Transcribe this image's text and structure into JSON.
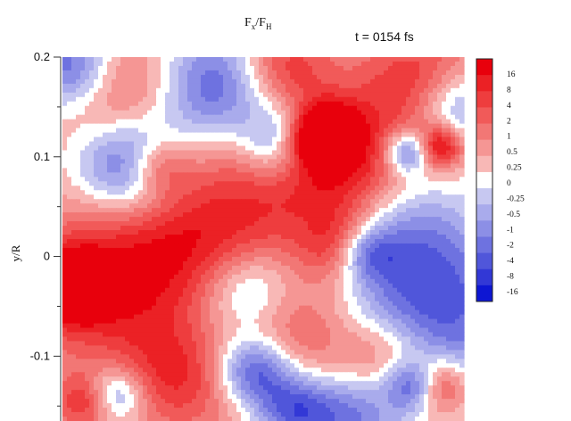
{
  "chart_data": {
    "type": "heatmap",
    "title_main": "F",
    "title_sub1": "x",
    "title_sep": "/F",
    "title_sub2": "H",
    "annotation": "t = 0154 fs",
    "ylabel": "y/R",
    "xlabel": "",
    "y_ticks": [
      "0.2",
      "0.1",
      "0",
      "-0.1"
    ],
    "y_tick_values": [
      0.2,
      0.1,
      0,
      -0.1
    ],
    "ylim": [
      -0.165,
      0.2
    ],
    "colorbar": {
      "labels": [
        "16",
        "8",
        "4",
        "2",
        "1",
        "0.5",
        "0.25",
        "0",
        "-0.25",
        "-0.5",
        "-1",
        "-2",
        "-4",
        "-8",
        "-16"
      ],
      "colors": [
        "#e8000c",
        "#eb2125",
        "#ee3d3e",
        "#f15a59",
        "#f27775",
        "#f59694",
        "#f8b8b6",
        "#ffffff",
        "#c7c8f1",
        "#a9abec",
        "#8c8fe6",
        "#6e72e0",
        "#5056da",
        "#3238d6",
        "#0d16d3"
      ]
    },
    "field_sources": [
      {
        "x": 0.17,
        "y": 0.09,
        "s": -1.0,
        "r": 0.035
      },
      {
        "x": 0.24,
        "y": 0.09,
        "s": 0.6,
        "r": 0.02
      },
      {
        "x": 0.02,
        "y": 0.19,
        "s": -0.9,
        "r": 0.03
      },
      {
        "x": 0.14,
        "y": 0.17,
        "s": 0.5,
        "r": 0.04
      },
      {
        "x": 0.38,
        "y": 0.17,
        "s": -0.9,
        "r": 0.04
      },
      {
        "x": 0.56,
        "y": 0.115,
        "s": -1.0,
        "r": 0.025
      },
      {
        "x": 0.61,
        "y": 0.115,
        "s": 0.9,
        "r": 0.02
      },
      {
        "x": 0.66,
        "y": 0.13,
        "s": 0.7,
        "r": 0.02
      },
      {
        "x": 0.55,
        "y": 0.19,
        "s": 0.6,
        "r": 0.03
      },
      {
        "x": 0.9,
        "y": 0.17,
        "s": 0.7,
        "r": 0.04
      },
      {
        "x": 0.86,
        "y": 0.105,
        "s": -0.9,
        "r": 0.015
      },
      {
        "x": 0.94,
        "y": 0.11,
        "s": 0.9,
        "r": 0.015
      },
      {
        "x": 0.98,
        "y": 0.15,
        "s": -0.8,
        "r": 0.03
      },
      {
        "x": 0.82,
        "y": 0.02,
        "s": -0.7,
        "r": 0.05
      },
      {
        "x": 0.94,
        "y": -0.06,
        "s": -0.8,
        "r": 0.06
      },
      {
        "x": 0.75,
        "y": 0.005,
        "s": -0.9,
        "r": 0.02
      },
      {
        "x": 0.71,
        "y": 0.01,
        "s": 0.9,
        "r": 0.025
      },
      {
        "x": 0.7,
        "y": 0.09,
        "s": 0.7,
        "r": 0.04
      },
      {
        "x": 0.33,
        "y": 0.02,
        "s": 0.5,
        "r": 0.06
      },
      {
        "x": 0.02,
        "y": -0.03,
        "s": 1.0,
        "r": 0.025
      },
      {
        "x": 0.12,
        "y": -0.03,
        "s": 0.6,
        "r": 0.06
      },
      {
        "x": 0.47,
        "y": -0.03,
        "s": -0.6,
        "r": 0.03
      },
      {
        "x": 0.43,
        "y": -0.07,
        "s": -0.4,
        "r": 0.04
      },
      {
        "x": 0.48,
        "y": -0.115,
        "s": -1.0,
        "r": 0.025
      },
      {
        "x": 0.55,
        "y": -0.08,
        "s": 0.5,
        "r": 0.04
      },
      {
        "x": 0.58,
        "y": -0.155,
        "s": -0.8,
        "r": 0.025
      },
      {
        "x": 0.07,
        "y": -0.145,
        "s": 0.9,
        "r": 0.02
      },
      {
        "x": 0.12,
        "y": -0.14,
        "s": -1.0,
        "r": 0.02
      },
      {
        "x": 0.3,
        "y": -0.12,
        "s": 0.6,
        "r": 0.04
      },
      {
        "x": 0.88,
        "y": -0.13,
        "s": -1.0,
        "r": 0.018
      },
      {
        "x": 0.93,
        "y": -0.13,
        "s": 1.0,
        "r": 0.02
      },
      {
        "x": 0.8,
        "y": -0.1,
        "s": 0.5,
        "r": 0.03
      },
      {
        "x": 0.72,
        "y": -0.16,
        "s": -0.6,
        "r": 0.03
      },
      {
        "x": 0.6,
        "y": 0.05,
        "s": 0.4,
        "r": 0.08
      }
    ],
    "field_bias": 0.35
  }
}
